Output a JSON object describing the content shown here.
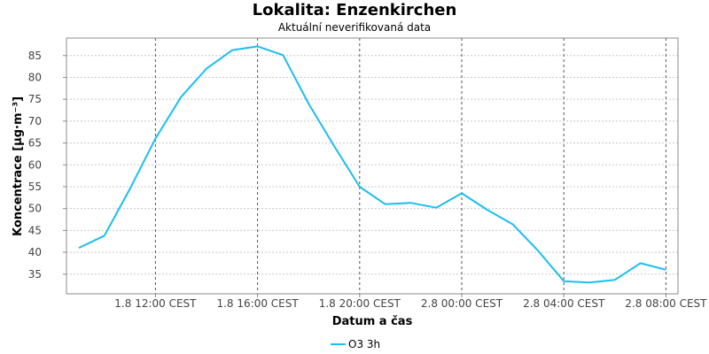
{
  "chart_data": {
    "type": "line",
    "title": "Lokalita: Enzenkirchen",
    "subtitle": "Aktuální neverifikovaná data",
    "xlabel": "Datum a čas",
    "ylabel": "Koncentrace [µg·m⁻³]",
    "x_ticks": [
      "1.8 12:00 CEST",
      "1.8 16:00 CEST",
      "1.8 20:00 CEST",
      "2.8 00:00 CEST",
      "2.8 04:00 CEST",
      "2.8 08:00 CEST"
    ],
    "y_ticks": [
      35,
      40,
      45,
      50,
      55,
      60,
      65,
      70,
      75,
      80,
      85
    ],
    "ylim": [
      30.5,
      89
    ],
    "x_start": "1.8 09:00 CEST",
    "x_step_hours": 1,
    "grid": true,
    "legend_position": "bottom-center",
    "series": [
      {
        "name": "O3 3h",
        "color": "#1bbef0",
        "values": [
          41,
          43.8,
          54.5,
          66,
          75.5,
          82,
          86.2,
          87.1,
          85.1,
          74,
          64.3,
          55,
          51,
          51.3,
          50.2,
          53.5,
          49.7,
          46.4,
          40.3,
          33.4,
          33.1,
          33.7,
          37.5,
          36
        ]
      }
    ]
  }
}
